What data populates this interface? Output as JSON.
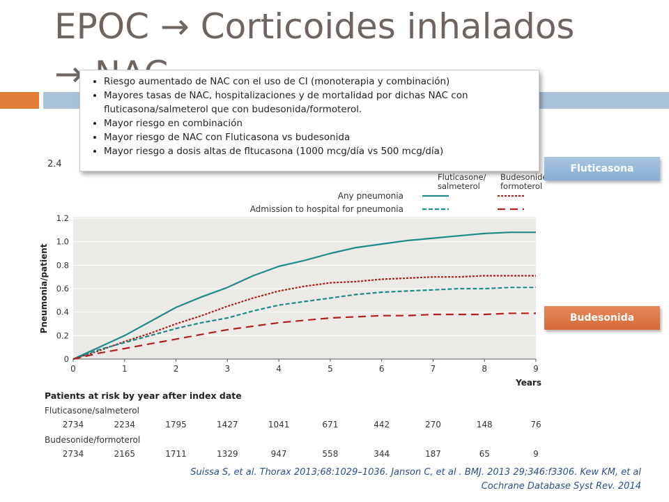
{
  "slide": {
    "title_line1": "EPOC → Corticoides inhalados",
    "title_line2": "→ NAC",
    "bullets": [
      "Riesgo aumentado de NAC con el uso de CI (monoterapia y combinación)",
      "Mayores tasas de NAC, hospitalizaciones y de mortalidad por dichas NAC  con fluticasona/salmeterol que con budesonida/formoterol.",
      "Mayor riesgo en combinación",
      "Mayor riesgo de NAC con Fluticasona vs budesonida",
      "Mayor riesgo a dosis altas de fltucasona (1000 mcg/día vs 500 mcg/día)"
    ],
    "fluticasona_label": "Fluticasona",
    "budesonida_label": "Budesonida",
    "citation_line1": "Suissa S, et al. Thorax 2013;68:1029–1036. Janson C, et al . BMJ. 2013 29;346:f3306. Kew KM, et al",
    "citation_line2": "Cochrane Database Syst Rev. 2014"
  },
  "colors": {
    "title": "#6f6560",
    "orange": "#e07b39",
    "blue_rule": "#a9c1d9",
    "teal": "#1f8a8a",
    "red": "#b0201e",
    "plot_bg": "#ebeae6"
  },
  "chart_data": {
    "type": "line",
    "xlabel": "Years",
    "ylabel": "Pneumonia/patient",
    "xlim": [
      0,
      9
    ],
    "ylim": [
      0,
      1.2
    ],
    "x_ticks": [
      0,
      1,
      2,
      3,
      4,
      5,
      6,
      7,
      8,
      9
    ],
    "y_ticks": [
      "0",
      "0.2",
      "0.4",
      "0.6",
      "0.8",
      "1.0",
      "1.2"
    ],
    "partial_tick_label": "2.4",
    "legend": {
      "col1": "Fluticasone/\nsalmeterol",
      "col2": "Budesonide/\nformoterol",
      "row1": "Any pneumonia",
      "row2": "Admission to hospital for pneumonia"
    },
    "x": [
      0,
      0.5,
      1,
      1.5,
      2,
      2.5,
      3,
      3.5,
      4,
      4.5,
      5,
      5.5,
      6,
      6.5,
      7,
      7.5,
      8,
      8.5,
      9
    ],
    "series": [
      {
        "name": "Fluticasone/salmeterol – Any pneumonia",
        "color": "#1f8a8a",
        "dash": "solid",
        "values": [
          0,
          0.1,
          0.2,
          0.32,
          0.44,
          0.53,
          0.61,
          0.71,
          0.79,
          0.84,
          0.9,
          0.95,
          0.98,
          1.01,
          1.03,
          1.05,
          1.07,
          1.08,
          1.08
        ]
      },
      {
        "name": "Budesonide/formoterol – Any pneumonia",
        "color": "#b0201e",
        "dash": "dotted",
        "values": [
          0,
          0.07,
          0.15,
          0.22,
          0.3,
          0.37,
          0.45,
          0.52,
          0.58,
          0.62,
          0.65,
          0.66,
          0.68,
          0.69,
          0.7,
          0.7,
          0.71,
          0.71,
          0.71
        ]
      },
      {
        "name": "Fluticasone/salmeterol – Admission to hospital for pneumonia",
        "color": "#1f8a8a",
        "dash": "dashed",
        "values": [
          0,
          0.08,
          0.14,
          0.2,
          0.26,
          0.31,
          0.35,
          0.41,
          0.46,
          0.49,
          0.52,
          0.55,
          0.57,
          0.58,
          0.59,
          0.6,
          0.6,
          0.61,
          0.61
        ]
      },
      {
        "name": "Budesonide/formoterol – Admission to hospital for pneumonia",
        "color": "#b0201e",
        "dash": "longdash",
        "values": [
          0,
          0.05,
          0.09,
          0.13,
          0.17,
          0.21,
          0.25,
          0.28,
          0.31,
          0.33,
          0.35,
          0.36,
          0.37,
          0.37,
          0.38,
          0.38,
          0.38,
          0.39,
          0.39
        ]
      }
    ],
    "risk_table": {
      "header": "Patients at risk by year after index date",
      "rows": [
        {
          "label": "Fluticasone/salmeterol",
          "values": [
            "2734",
            "2234",
            "1795",
            "1427",
            "1041",
            "671",
            "442",
            "270",
            "148",
            "76"
          ]
        },
        {
          "label": "Budesonide/formoterol",
          "values": [
            "2734",
            "2165",
            "1711",
            "1329",
            "947",
            "558",
            "344",
            "187",
            "65",
            "9"
          ]
        }
      ]
    }
  }
}
